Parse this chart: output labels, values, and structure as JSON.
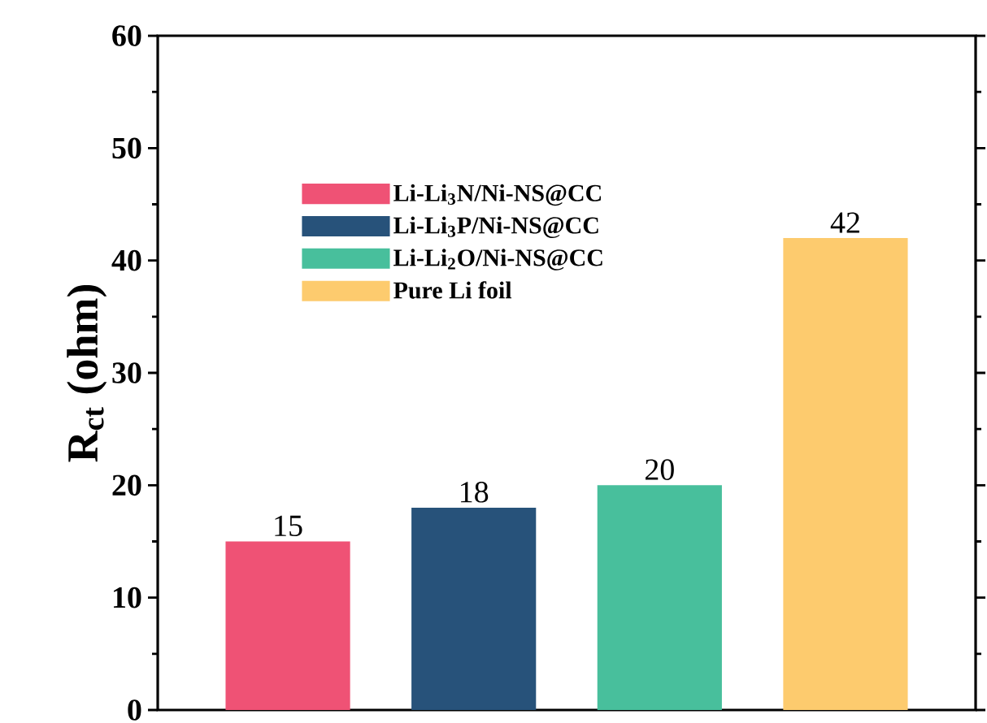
{
  "chart_data": {
    "type": "bar",
    "ylabel": "R$_{ct}$ (ohm)",
    "categories": [
      null,
      null,
      null,
      null
    ],
    "series": [
      {
        "name": "Li-Li$_{3}$N/Ni-NS@CC",
        "color": "#ef5275",
        "values": [
          15,
          null,
          null,
          null
        ]
      },
      {
        "name": "Li-Li$_{3}$P/Ni-NS@CC",
        "color": "#27527a",
        "values": [
          null,
          18,
          null,
          null
        ]
      },
      {
        "name": "Li-Li$_{2}$O/Ni-NS@CC",
        "color": "#48bf9c",
        "values": [
          null,
          null,
          20,
          null
        ]
      },
      {
        "name": "Pure Li foil",
        "color": "#fdcb6e",
        "values": [
          null,
          null,
          null,
          42
        ]
      }
    ],
    "stacked": true,
    "ylim": [
      0,
      60
    ],
    "yticks": [
      0,
      10,
      20,
      30,
      40,
      50,
      60
    ],
    "data_labels": true,
    "legend": "top left"
  }
}
